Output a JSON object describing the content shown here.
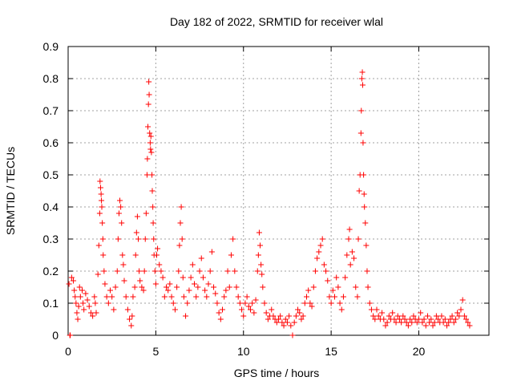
{
  "chart_data": {
    "type": "scatter",
    "title": "Day 182 of 2022, SRMTID for receiver wlal",
    "xlabel": "GPS time / hours",
    "ylabel": "SRMTID / TECUs",
    "xlim": [
      0,
      24
    ],
    "ylim": [
      0,
      0.9
    ],
    "x_ticks": [
      0,
      5,
      10,
      15,
      20
    ],
    "x_tick_labels": [
      "0",
      "5",
      "10",
      "15",
      "20"
    ],
    "y_ticks": [
      0,
      0.1,
      0.2,
      0.3,
      0.4,
      0.5,
      0.6,
      0.7,
      0.8,
      0.9
    ],
    "y_tick_labels": [
      "0",
      "0.1",
      "0.2",
      "0.3",
      "0.4",
      "0.5",
      "0.6",
      "0.7",
      "0.8",
      "0.9"
    ],
    "grid": true,
    "marker": "+",
    "series": [
      {
        "name": "SRMTID",
        "color": "#ff0000",
        "points": [
          [
            0.05,
            0.16
          ],
          [
            0.1,
            0.0
          ],
          [
            0.12,
            0.0
          ],
          [
            0.2,
            0.18
          ],
          [
            0.3,
            0.17
          ],
          [
            0.35,
            0.14
          ],
          [
            0.4,
            0.12
          ],
          [
            0.45,
            0.1
          ],
          [
            0.5,
            0.07
          ],
          [
            0.55,
            0.05
          ],
          [
            0.6,
            0.09
          ],
          [
            0.65,
            0.15
          ],
          [
            0.7,
            0.12
          ],
          [
            0.8,
            0.14
          ],
          [
            0.85,
            0.1
          ],
          [
            0.9,
            0.08
          ],
          [
            1.0,
            0.13
          ],
          [
            1.1,
            0.11
          ],
          [
            1.2,
            0.09
          ],
          [
            1.3,
            0.07
          ],
          [
            1.4,
            0.06
          ],
          [
            1.5,
            0.12
          ],
          [
            1.55,
            0.1
          ],
          [
            1.6,
            0.07
          ],
          [
            1.7,
            0.19
          ],
          [
            1.75,
            0.28
          ],
          [
            1.8,
            0.38
          ],
          [
            1.82,
            0.48
          ],
          [
            1.85,
            0.46
          ],
          [
            1.88,
            0.44
          ],
          [
            1.9,
            0.42
          ],
          [
            1.92,
            0.4
          ],
          [
            1.95,
            0.35
          ],
          [
            1.98,
            0.3
          ],
          [
            2.0,
            0.25
          ],
          [
            2.05,
            0.2
          ],
          [
            2.1,
            0.16
          ],
          [
            2.2,
            0.12
          ],
          [
            2.3,
            0.1
          ],
          [
            2.4,
            0.14
          ],
          [
            2.5,
            0.12
          ],
          [
            2.6,
            0.08
          ],
          [
            2.7,
            0.15
          ],
          [
            2.8,
            0.2
          ],
          [
            2.85,
            0.3
          ],
          [
            2.9,
            0.38
          ],
          [
            2.95,
            0.42
          ],
          [
            3.0,
            0.4
          ],
          [
            3.05,
            0.35
          ],
          [
            3.1,
            0.25
          ],
          [
            3.15,
            0.22
          ],
          [
            3.2,
            0.17
          ],
          [
            3.3,
            0.12
          ],
          [
            3.4,
            0.08
          ],
          [
            3.5,
            0.05
          ],
          [
            3.6,
            0.03
          ],
          [
            3.65,
            0.06
          ],
          [
            3.7,
            0.12
          ],
          [
            3.8,
            0.15
          ],
          [
            3.85,
            0.25
          ],
          [
            3.9,
            0.32
          ],
          [
            3.95,
            0.37
          ],
          [
            4.0,
            0.3
          ],
          [
            4.05,
            0.2
          ],
          [
            4.1,
            0.17
          ],
          [
            4.2,
            0.15
          ],
          [
            4.3,
            0.14
          ],
          [
            4.35,
            0.2
          ],
          [
            4.4,
            0.3
          ],
          [
            4.45,
            0.38
          ],
          [
            4.5,
            0.5
          ],
          [
            4.52,
            0.55
          ],
          [
            4.55,
            0.65
          ],
          [
            4.58,
            0.72
          ],
          [
            4.6,
            0.79
          ],
          [
            4.62,
            0.75
          ],
          [
            4.65,
            0.63
          ],
          [
            4.68,
            0.6
          ],
          [
            4.7,
            0.58
          ],
          [
            4.72,
            0.62
          ],
          [
            4.75,
            0.57
          ],
          [
            4.78,
            0.5
          ],
          [
            4.8,
            0.45
          ],
          [
            4.83,
            0.4
          ],
          [
            4.85,
            0.35
          ],
          [
            4.88,
            0.3
          ],
          [
            4.9,
            0.25
          ],
          [
            4.95,
            0.2
          ],
          [
            5.0,
            0.16
          ],
          [
            5.05,
            0.25
          ],
          [
            5.1,
            0.27
          ],
          [
            5.2,
            0.22
          ],
          [
            5.3,
            0.2
          ],
          [
            5.4,
            0.18
          ],
          [
            5.5,
            0.12
          ],
          [
            5.6,
            0.15
          ],
          [
            5.7,
            0.14
          ],
          [
            5.8,
            0.16
          ],
          [
            5.9,
            0.12
          ],
          [
            6.0,
            0.1
          ],
          [
            6.1,
            0.08
          ],
          [
            6.2,
            0.15
          ],
          [
            6.3,
            0.2
          ],
          [
            6.35,
            0.28
          ],
          [
            6.4,
            0.35
          ],
          [
            6.45,
            0.4
          ],
          [
            6.5,
            0.3
          ],
          [
            6.55,
            0.18
          ],
          [
            6.6,
            0.12
          ],
          [
            6.7,
            0.06
          ],
          [
            6.8,
            0.1
          ],
          [
            6.9,
            0.14
          ],
          [
            7.0,
            0.18
          ],
          [
            7.1,
            0.22
          ],
          [
            7.2,
            0.16
          ],
          [
            7.3,
            0.12
          ],
          [
            7.4,
            0.15
          ],
          [
            7.5,
            0.2
          ],
          [
            7.6,
            0.24
          ],
          [
            7.7,
            0.18
          ],
          [
            7.8,
            0.14
          ],
          [
            7.9,
            0.12
          ],
          [
            8.0,
            0.16
          ],
          [
            8.1,
            0.2
          ],
          [
            8.2,
            0.26
          ],
          [
            8.3,
            0.15
          ],
          [
            8.4,
            0.13
          ],
          [
            8.5,
            0.1
          ],
          [
            8.6,
            0.07
          ],
          [
            8.7,
            0.05
          ],
          [
            8.8,
            0.08
          ],
          [
            8.9,
            0.12
          ],
          [
            9.0,
            0.14
          ],
          [
            9.1,
            0.2
          ],
          [
            9.2,
            0.15
          ],
          [
            9.3,
            0.25
          ],
          [
            9.4,
            0.3
          ],
          [
            9.5,
            0.2
          ],
          [
            9.6,
            0.15
          ],
          [
            9.7,
            0.12
          ],
          [
            9.8,
            0.1
          ],
          [
            9.9,
            0.08
          ],
          [
            10.0,
            0.06
          ],
          [
            10.1,
            0.1
          ],
          [
            10.2,
            0.12
          ],
          [
            10.3,
            0.09
          ],
          [
            10.4,
            0.08
          ],
          [
            10.5,
            0.1
          ],
          [
            10.6,
            0.07
          ],
          [
            10.7,
            0.11
          ],
          [
            10.8,
            0.2
          ],
          [
            10.85,
            0.25
          ],
          [
            10.9,
            0.32
          ],
          [
            10.95,
            0.28
          ],
          [
            11.0,
            0.22
          ],
          [
            11.05,
            0.19
          ],
          [
            11.1,
            0.15
          ],
          [
            11.2,
            0.1
          ],
          [
            11.3,
            0.07
          ],
          [
            11.4,
            0.05
          ],
          [
            11.5,
            0.06
          ],
          [
            11.6,
            0.08
          ],
          [
            11.7,
            0.06
          ],
          [
            11.8,
            0.05
          ],
          [
            11.9,
            0.04
          ],
          [
            12.0,
            0.05
          ],
          [
            12.1,
            0.06
          ],
          [
            12.2,
            0.04
          ],
          [
            12.3,
            0.03
          ],
          [
            12.4,
            0.05
          ],
          [
            12.5,
            0.04
          ],
          [
            12.6,
            0.06
          ],
          [
            12.7,
            0.03
          ],
          [
            12.8,
            0.0
          ],
          [
            12.9,
            0.04
          ],
          [
            13.0,
            0.06
          ],
          [
            13.1,
            0.08
          ],
          [
            13.2,
            0.07
          ],
          [
            13.3,
            0.05
          ],
          [
            13.4,
            0.06
          ],
          [
            13.5,
            0.1
          ],
          [
            13.6,
            0.12
          ],
          [
            13.7,
            0.14
          ],
          [
            13.8,
            0.1
          ],
          [
            13.9,
            0.09
          ],
          [
            14.0,
            0.15
          ],
          [
            14.1,
            0.2
          ],
          [
            14.2,
            0.24
          ],
          [
            14.3,
            0.26
          ],
          [
            14.4,
            0.28
          ],
          [
            14.5,
            0.3
          ],
          [
            14.6,
            0.22
          ],
          [
            14.7,
            0.2
          ],
          [
            14.8,
            0.17
          ],
          [
            14.9,
            0.12
          ],
          [
            15.0,
            0.1
          ],
          [
            15.1,
            0.14
          ],
          [
            15.2,
            0.12
          ],
          [
            15.3,
            0.18
          ],
          [
            15.4,
            0.15
          ],
          [
            15.5,
            0.1
          ],
          [
            15.6,
            0.08
          ],
          [
            15.7,
            0.12
          ],
          [
            15.8,
            0.18
          ],
          [
            15.9,
            0.25
          ],
          [
            16.0,
            0.3
          ],
          [
            16.05,
            0.33
          ],
          [
            16.1,
            0.22
          ],
          [
            16.2,
            0.26
          ],
          [
            16.3,
            0.24
          ],
          [
            16.4,
            0.15
          ],
          [
            16.5,
            0.12
          ],
          [
            16.55,
            0.3
          ],
          [
            16.6,
            0.45
          ],
          [
            16.65,
            0.5
          ],
          [
            16.7,
            0.63
          ],
          [
            16.72,
            0.7
          ],
          [
            16.75,
            0.8
          ],
          [
            16.78,
            0.82
          ],
          [
            16.8,
            0.78
          ],
          [
            16.82,
            0.6
          ],
          [
            16.85,
            0.5
          ],
          [
            16.88,
            0.44
          ],
          [
            16.9,
            0.4
          ],
          [
            16.95,
            0.35
          ],
          [
            17.0,
            0.28
          ],
          [
            17.05,
            0.2
          ],
          [
            17.1,
            0.15
          ],
          [
            17.2,
            0.1
          ],
          [
            17.3,
            0.08
          ],
          [
            17.4,
            0.06
          ],
          [
            17.5,
            0.05
          ],
          [
            17.6,
            0.08
          ],
          [
            17.7,
            0.06
          ],
          [
            17.8,
            0.05
          ],
          [
            17.9,
            0.07
          ],
          [
            18.0,
            0.05
          ],
          [
            18.1,
            0.03
          ],
          [
            18.2,
            0.04
          ],
          [
            18.3,
            0.06
          ],
          [
            18.4,
            0.05
          ],
          [
            18.5,
            0.07
          ],
          [
            18.6,
            0.05
          ],
          [
            18.7,
            0.04
          ],
          [
            18.8,
            0.06
          ],
          [
            18.9,
            0.05
          ],
          [
            19.0,
            0.04
          ],
          [
            19.1,
            0.06
          ],
          [
            19.2,
            0.05
          ],
          [
            19.3,
            0.04
          ],
          [
            19.4,
            0.03
          ],
          [
            19.5,
            0.05
          ],
          [
            19.6,
            0.04
          ],
          [
            19.7,
            0.06
          ],
          [
            19.8,
            0.05
          ],
          [
            19.9,
            0.04
          ],
          [
            20.0,
            0.05
          ],
          [
            20.1,
            0.07
          ],
          [
            20.2,
            0.04
          ],
          [
            20.3,
            0.05
          ],
          [
            20.4,
            0.03
          ],
          [
            20.5,
            0.06
          ],
          [
            20.6,
            0.04
          ],
          [
            20.7,
            0.05
          ],
          [
            20.8,
            0.03
          ],
          [
            20.9,
            0.04
          ],
          [
            21.0,
            0.06
          ],
          [
            21.1,
            0.05
          ],
          [
            21.2,
            0.04
          ],
          [
            21.3,
            0.06
          ],
          [
            21.4,
            0.04
          ],
          [
            21.5,
            0.05
          ],
          [
            21.6,
            0.03
          ],
          [
            21.7,
            0.04
          ],
          [
            21.8,
            0.05
          ],
          [
            21.9,
            0.06
          ],
          [
            22.0,
            0.04
          ],
          [
            22.1,
            0.05
          ],
          [
            22.2,
            0.07
          ],
          [
            22.3,
            0.06
          ],
          [
            22.4,
            0.08
          ],
          [
            22.5,
            0.11
          ],
          [
            22.6,
            0.06
          ],
          [
            22.7,
            0.05
          ],
          [
            22.8,
            0.04
          ],
          [
            22.9,
            0.03
          ]
        ]
      }
    ]
  }
}
